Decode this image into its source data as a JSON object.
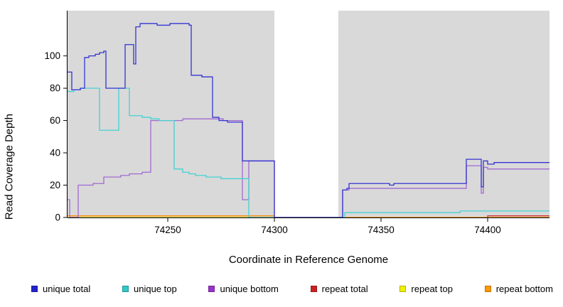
{
  "figure": {
    "xlabel": "Coordinate in Reference Genome",
    "ylabel": "Read Coverage Depth"
  },
  "chart_data": {
    "type": "line",
    "title": "",
    "xlabel": "Coordinate in Reference Genome",
    "ylabel": "Read Coverage Depth",
    "xlim": [
      74203,
      74429
    ],
    "ylim": [
      0,
      128
    ],
    "xticks": [
      74250,
      74300,
      74350,
      74400
    ],
    "yticks": [
      0,
      20,
      40,
      60,
      80,
      100
    ],
    "plot_bg": "#d9d9d9",
    "gap_region": {
      "x0": 74300,
      "x1": 74330,
      "color": "#ffffff"
    },
    "grid": false,
    "legend_position": "bottom",
    "series": [
      {
        "name": "repeat top",
        "color": "#e8e800",
        "points": [
          [
            74203,
            0
          ],
          [
            74429,
            0
          ]
        ]
      },
      {
        "name": "repeat total",
        "color": "#cc2222",
        "points": [
          [
            74203,
            1
          ],
          [
            74300,
            1
          ],
          [
            74300,
            0
          ],
          [
            74399,
            0
          ],
          [
            74400,
            1
          ],
          [
            74429,
            1
          ]
        ]
      },
      {
        "name": "repeat bottom",
        "color": "#ff9900",
        "points": [
          [
            74203,
            1
          ],
          [
            74300,
            1
          ],
          [
            74300,
            0
          ],
          [
            74429,
            0
          ]
        ]
      },
      {
        "name": "unique bottom",
        "color": "#a06ad2",
        "points": [
          [
            74203,
            11
          ],
          [
            74204,
            0
          ],
          [
            74207,
            0
          ],
          [
            74208,
            20
          ],
          [
            74213,
            20
          ],
          [
            74215,
            21
          ],
          [
            74219,
            21
          ],
          [
            74220,
            25
          ],
          [
            74226,
            25
          ],
          [
            74228,
            26
          ],
          [
            74232,
            27
          ],
          [
            74238,
            28
          ],
          [
            74241,
            28
          ],
          [
            74242,
            60
          ],
          [
            74255,
            60
          ],
          [
            74257,
            61
          ],
          [
            74271,
            61
          ],
          [
            74276,
            60
          ],
          [
            74284,
            60
          ],
          [
            74285,
            11
          ],
          [
            74288,
            35
          ],
          [
            74300,
            35
          ],
          [
            74300,
            0
          ],
          [
            74331,
            0
          ],
          [
            74332,
            17
          ],
          [
            74335,
            18
          ],
          [
            74389,
            18
          ],
          [
            74390,
            32
          ],
          [
            74396,
            32
          ],
          [
            74397,
            15
          ],
          [
            74398,
            31
          ],
          [
            74400,
            30
          ],
          [
            74429,
            30
          ]
        ]
      },
      {
        "name": "unique top",
        "color": "#45d2d2",
        "points": [
          [
            74203,
            78
          ],
          [
            74206,
            79
          ],
          [
            74209,
            80
          ],
          [
            74217,
            80
          ],
          [
            74218,
            54
          ],
          [
            74226,
            54
          ],
          [
            74227,
            80
          ],
          [
            74231,
            80
          ],
          [
            74232,
            63
          ],
          [
            74238,
            62
          ],
          [
            74242,
            61
          ],
          [
            74246,
            60
          ],
          [
            74252,
            60
          ],
          [
            74253,
            30
          ],
          [
            74257,
            28
          ],
          [
            74260,
            27
          ],
          [
            74263,
            26
          ],
          [
            74268,
            25
          ],
          [
            74274,
            25
          ],
          [
            74275,
            24
          ],
          [
            74287,
            24
          ],
          [
            74288,
            0
          ],
          [
            74300,
            0
          ],
          [
            74331,
            0
          ],
          [
            74333,
            3
          ],
          [
            74386,
            3
          ],
          [
            74387,
            4
          ],
          [
            74429,
            4
          ]
        ]
      },
      {
        "name": "unique total",
        "color": "#3434d3",
        "points": [
          [
            74203,
            90
          ],
          [
            74205,
            79
          ],
          [
            74209,
            80
          ],
          [
            74211,
            99
          ],
          [
            74213,
            100
          ],
          [
            74216,
            101
          ],
          [
            74218,
            102
          ],
          [
            74220,
            103
          ],
          [
            74221,
            80
          ],
          [
            74229,
            80
          ],
          [
            74230,
            107
          ],
          [
            74233,
            107
          ],
          [
            74234,
            95
          ],
          [
            74235,
            118
          ],
          [
            74237,
            120
          ],
          [
            74245,
            119
          ],
          [
            74251,
            120
          ],
          [
            74260,
            119
          ],
          [
            74261,
            88
          ],
          [
            74264,
            88
          ],
          [
            74266,
            87
          ],
          [
            74270,
            87
          ],
          [
            74271,
            62
          ],
          [
            74274,
            60
          ],
          [
            74278,
            59
          ],
          [
            74284,
            59
          ],
          [
            74285,
            35
          ],
          [
            74300,
            35
          ],
          [
            74300,
            0
          ],
          [
            74331,
            0
          ],
          [
            74332,
            17
          ],
          [
            74334,
            18
          ],
          [
            74335,
            21
          ],
          [
            74352,
            21
          ],
          [
            74354,
            20
          ],
          [
            74356,
            21
          ],
          [
            74389,
            21
          ],
          [
            74390,
            36
          ],
          [
            74396,
            36
          ],
          [
            74397,
            19
          ],
          [
            74398,
            35
          ],
          [
            74400,
            33
          ],
          [
            74403,
            34
          ],
          [
            74429,
            34
          ]
        ]
      }
    ]
  },
  "legend": {
    "items": [
      {
        "label": "unique total",
        "color": "#2424cc"
      },
      {
        "label": "unique top",
        "color": "#2fc9c9"
      },
      {
        "label": "unique bottom",
        "color": "#9933cc"
      },
      {
        "label": "repeat total",
        "color": "#cc2222"
      },
      {
        "label": "repeat top",
        "color": "#f0f000"
      },
      {
        "label": "repeat bottom",
        "color": "#ff9900"
      }
    ]
  }
}
